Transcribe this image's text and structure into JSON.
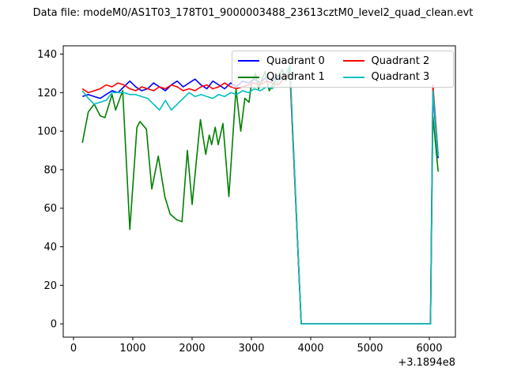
{
  "chart_data": {
    "type": "line",
    "title": "Data file: modeM0/AS1T03_178T01_9000003488_23613cztM0_level2_quad_clean.evt",
    "xlabel": "",
    "ylabel": "",
    "x_offset_label": "+3.1894e8",
    "xlim": [
      -173,
      6440
    ],
    "ylim": [
      -6.9,
      144.3
    ],
    "xticks": [
      0,
      1000,
      2000,
      3000,
      4000,
      5000,
      6000
    ],
    "yticks": [
      0,
      20,
      40,
      60,
      80,
      100,
      120,
      140
    ],
    "grid": false,
    "legend": {
      "position": "upper-right",
      "columns": 2
    },
    "series": [
      {
        "name": "Quadrant 0",
        "color": "#0000ff",
        "points": [
          [
            150,
            118
          ],
          [
            250,
            119
          ],
          [
            350,
            118
          ],
          [
            450,
            117
          ],
          [
            550,
            119
          ],
          [
            650,
            121
          ],
          [
            750,
            120
          ],
          [
            850,
            123
          ],
          [
            950,
            126
          ],
          [
            1050,
            123
          ],
          [
            1150,
            121
          ],
          [
            1250,
            122
          ],
          [
            1350,
            125
          ],
          [
            1450,
            123
          ],
          [
            1550,
            121
          ],
          [
            1650,
            124
          ],
          [
            1750,
            126
          ],
          [
            1850,
            123
          ],
          [
            1950,
            125
          ],
          [
            2050,
            127
          ],
          [
            2150,
            124
          ],
          [
            2250,
            122
          ],
          [
            2350,
            126
          ],
          [
            2450,
            124
          ],
          [
            2550,
            122
          ],
          [
            2650,
            125
          ],
          [
            2750,
            123
          ],
          [
            2850,
            126
          ],
          [
            2950,
            125
          ],
          [
            3050,
            127
          ],
          [
            3150,
            125
          ],
          [
            3250,
            128
          ],
          [
            3350,
            126
          ],
          [
            3450,
            129
          ],
          [
            3550,
            127
          ],
          [
            3650,
            131
          ],
          [
            3840,
            0
          ],
          [
            4500,
            0
          ],
          [
            5300,
            0
          ],
          [
            6020,
            0
          ],
          [
            6060,
            119
          ],
          [
            6150,
            86
          ]
        ]
      },
      {
        "name": "Quadrant 1",
        "color": "#008000",
        "points": [
          [
            150,
            94
          ],
          [
            250,
            110
          ],
          [
            350,
            114
          ],
          [
            450,
            108
          ],
          [
            530,
            107
          ],
          [
            650,
            119
          ],
          [
            710,
            111
          ],
          [
            830,
            121
          ],
          [
            950,
            49
          ],
          [
            1070,
            102
          ],
          [
            1120,
            105
          ],
          [
            1230,
            101
          ],
          [
            1320,
            70
          ],
          [
            1430,
            87
          ],
          [
            1540,
            66
          ],
          [
            1630,
            57
          ],
          [
            1740,
            54
          ],
          [
            1830,
            53
          ],
          [
            1920,
            90
          ],
          [
            2000,
            62
          ],
          [
            2140,
            106
          ],
          [
            2230,
            88
          ],
          [
            2290,
            98
          ],
          [
            2330,
            93
          ],
          [
            2390,
            102
          ],
          [
            2440,
            93
          ],
          [
            2520,
            104
          ],
          [
            2620,
            66
          ],
          [
            2740,
            122
          ],
          [
            2820,
            100
          ],
          [
            2890,
            117
          ],
          [
            2960,
            115
          ],
          [
            3000,
            125
          ],
          [
            3070,
            130
          ],
          [
            3120,
            122
          ],
          [
            3230,
            131
          ],
          [
            3300,
            121
          ],
          [
            3400,
            126
          ],
          [
            3520,
            132
          ],
          [
            3580,
            126
          ],
          [
            3650,
            133
          ],
          [
            3840,
            0
          ],
          [
            4500,
            0
          ],
          [
            5300,
            0
          ],
          [
            6020,
            0
          ],
          [
            6060,
            108
          ],
          [
            6150,
            79
          ]
        ]
      },
      {
        "name": "Quadrant 2",
        "color": "#ff0000",
        "points": [
          [
            150,
            122
          ],
          [
            250,
            120
          ],
          [
            350,
            121
          ],
          [
            450,
            122
          ],
          [
            550,
            124
          ],
          [
            650,
            123
          ],
          [
            750,
            125
          ],
          [
            850,
            124
          ],
          [
            950,
            122
          ],
          [
            1050,
            121
          ],
          [
            1150,
            123
          ],
          [
            1250,
            122
          ],
          [
            1350,
            121
          ],
          [
            1450,
            123
          ],
          [
            1550,
            122
          ],
          [
            1650,
            124
          ],
          [
            1750,
            123
          ],
          [
            1850,
            121
          ],
          [
            1950,
            122
          ],
          [
            2050,
            121
          ],
          [
            2150,
            123
          ],
          [
            2250,
            124
          ],
          [
            2350,
            122
          ],
          [
            2450,
            123
          ],
          [
            2550,
            125
          ],
          [
            2650,
            123
          ],
          [
            2750,
            122
          ],
          [
            2850,
            123
          ],
          [
            2950,
            124
          ],
          [
            3050,
            125
          ],
          [
            3150,
            124
          ],
          [
            3250,
            126
          ],
          [
            3350,
            125
          ],
          [
            3450,
            124
          ],
          [
            3550,
            127
          ],
          [
            3650,
            130
          ],
          [
            3840,
            0
          ],
          [
            4500,
            0
          ],
          [
            5300,
            0
          ],
          [
            6020,
            0
          ],
          [
            6060,
            124
          ],
          [
            6150,
            88
          ]
        ]
      },
      {
        "name": "Quadrant 3",
        "color": "#00bfbf",
        "points": [
          [
            150,
            121
          ],
          [
            250,
            117
          ],
          [
            350,
            114
          ],
          [
            450,
            115
          ],
          [
            550,
            116
          ],
          [
            650,
            120
          ],
          [
            750,
            120
          ],
          [
            850,
            120
          ],
          [
            950,
            119
          ],
          [
            1050,
            119
          ],
          [
            1150,
            118
          ],
          [
            1250,
            117
          ],
          [
            1350,
            114
          ],
          [
            1450,
            111
          ],
          [
            1550,
            116
          ],
          [
            1650,
            111
          ],
          [
            1750,
            114
          ],
          [
            1850,
            117
          ],
          [
            1950,
            120
          ],
          [
            2050,
            118
          ],
          [
            2150,
            119
          ],
          [
            2250,
            118
          ],
          [
            2350,
            117
          ],
          [
            2450,
            119
          ],
          [
            2550,
            118
          ],
          [
            2650,
            120
          ],
          [
            2750,
            119
          ],
          [
            2850,
            121
          ],
          [
            2950,
            120
          ],
          [
            3050,
            122
          ],
          [
            3150,
            121
          ],
          [
            3250,
            123
          ],
          [
            3350,
            122
          ],
          [
            3450,
            126
          ],
          [
            3550,
            128
          ],
          [
            3650,
            134
          ],
          [
            3840,
            0
          ],
          [
            4500,
            0
          ],
          [
            5300,
            0
          ],
          [
            6020,
            0
          ],
          [
            6060,
            121
          ],
          [
            6150,
            87
          ]
        ]
      }
    ]
  }
}
